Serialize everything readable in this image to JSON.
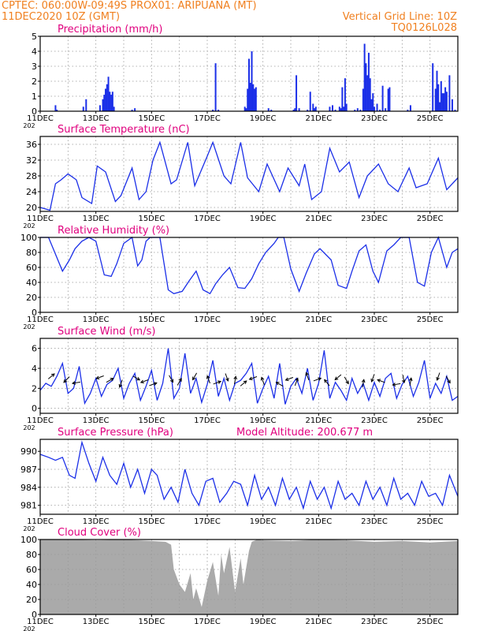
{
  "header": {
    "line1_left": "CPTEC:   060:00W-09:49S   PROX01: ARIPUANA (MT)",
    "line2_left": "11DEC2020  10Z (GMT)",
    "line2_right": "Vertical Grid Line: 10Z",
    "line3_right": "TQ0126L028"
  },
  "colors": {
    "header": "#f08020",
    "title": "#e0007e",
    "series": "#1b2fe8",
    "cloud": "#aaaaaa",
    "grid": "#999999"
  },
  "x_ticks": [
    "11DEC",
    "13DEC",
    "15DEC",
    "17DEC",
    "19DEC",
    "21DEC",
    "23DEC",
    "25DEC"
  ],
  "year_fragment": "202",
  "panel_titles": {
    "precip": "Precipitation (mm/h)",
    "temp": "Surface Temperature (nC)",
    "rh": "Relative Humidity (%)",
    "wind": "Surface Wind (m/s)",
    "pres": "Surface Pressure (hPa)",
    "alt": "Model Altitude: 200.677 m",
    "cloud": "Cloud Cover (%)"
  },
  "chart_data": [
    {
      "id": "precip",
      "type": "bar",
      "title": "Precipitation (mm/h)",
      "x_unit": "days since 11DEC 10Z",
      "xlim": [
        0,
        15
      ],
      "ylim": [
        0,
        5
      ],
      "yticks": [
        0,
        1,
        2,
        3,
        4,
        5
      ],
      "x": [
        0.55,
        0.6,
        1.55,
        1.65,
        2.15,
        2.25,
        2.3,
        2.35,
        2.4,
        2.45,
        2.5,
        2.55,
        2.6,
        2.65,
        3.3,
        3.4,
        6.2,
        6.3,
        6.4,
        7.35,
        7.4,
        7.45,
        7.5,
        7.55,
        7.6,
        7.65,
        7.7,
        7.75,
        8.2,
        8.3,
        9.1,
        9.15,
        9.2,
        9.3,
        9.6,
        9.7,
        9.8,
        9.85,
        9.9,
        10.4,
        10.5,
        10.6,
        10.75,
        10.8,
        10.85,
        10.9,
        10.95,
        11.0,
        11.3,
        11.4,
        11.5,
        11.6,
        11.65,
        11.7,
        11.75,
        11.8,
        11.85,
        11.9,
        11.95,
        12.0,
        12.1,
        12.2,
        12.3,
        12.4,
        12.5,
        12.55,
        13.2,
        13.3,
        14.1,
        14.2,
        14.25,
        14.3,
        14.35,
        14.4,
        14.45,
        14.5,
        14.55,
        14.6,
        14.7,
        14.8,
        14.9
      ],
      "values": [
        0.4,
        0.1,
        0.3,
        0.8,
        0.4,
        0.8,
        1.1,
        1.5,
        1.8,
        2.3,
        1.3,
        1.1,
        1.3,
        0.3,
        0.1,
        0.2,
        0.1,
        3.2,
        0.1,
        0.3,
        0.2,
        1.5,
        3.5,
        1.9,
        4.0,
        1.8,
        1.5,
        1.6,
        0.2,
        0.1,
        0.1,
        0.2,
        2.4,
        0.2,
        0.1,
        1.3,
        0.5,
        0.2,
        0.3,
        0.3,
        0.4,
        0.1,
        0.3,
        0.2,
        1.6,
        0.3,
        2.2,
        0.5,
        0.1,
        0.2,
        0.1,
        1.5,
        4.5,
        3.2,
        2.4,
        3.9,
        2.2,
        0.8,
        1.2,
        0.3,
        0.5,
        0.1,
        1.7,
        0.2,
        1.5,
        1.6,
        0.1,
        0.4,
        3.2,
        1.5,
        2.7,
        1.8,
        0.6,
        2.0,
        1.2,
        1.2,
        1.6,
        1.3,
        2.4,
        0.8,
        0.1
      ]
    },
    {
      "id": "temp",
      "type": "line",
      "title": "Surface Temperature (nC)",
      "x_unit": "days since 11DEC 10Z",
      "xlim": [
        0,
        15
      ],
      "ylim": [
        19,
        38
      ],
      "yticks": [
        20,
        24,
        28,
        32,
        36
      ],
      "x": [
        0,
        0.35,
        0.55,
        0.75,
        1.0,
        1.3,
        1.5,
        1.85,
        2.05,
        2.35,
        2.7,
        2.9,
        3.3,
        3.55,
        3.8,
        4.05,
        4.3,
        4.7,
        4.9,
        5.3,
        5.55,
        6.0,
        6.2,
        6.6,
        6.85,
        7.2,
        7.45,
        7.85,
        8.15,
        8.6,
        8.9,
        9.3,
        9.5,
        9.75,
        10.1,
        10.4,
        10.75,
        11.1,
        11.45,
        11.75,
        12.15,
        12.5,
        12.85,
        13.25,
        13.5,
        13.9,
        14.3,
        14.6,
        15
      ],
      "values": [
        20,
        19.3,
        26,
        27,
        28.5,
        27,
        22.5,
        21,
        30.5,
        29,
        21.5,
        23,
        30,
        22,
        24,
        32,
        36.5,
        26,
        27,
        36.5,
        25.5,
        33,
        36.5,
        28,
        26,
        36.5,
        27.5,
        24,
        31,
        24,
        30,
        25.5,
        31,
        22,
        24,
        35,
        29,
        31.5,
        22.5,
        28,
        31,
        26,
        24,
        30,
        25,
        26,
        32.5,
        24.5,
        27.5
      ]
    },
    {
      "id": "rh",
      "type": "line",
      "title": "Relative Humidity (%)",
      "x_unit": "days since 11DEC 10Z",
      "xlim": [
        0,
        15
      ],
      "ylim": [
        0,
        100
      ],
      "yticks": [
        0,
        20,
        40,
        60,
        80,
        100
      ],
      "x": [
        0,
        0.3,
        0.5,
        0.8,
        1.05,
        1.25,
        1.5,
        1.75,
        2.0,
        2.3,
        2.55,
        2.75,
        3.0,
        3.3,
        3.5,
        3.65,
        3.8,
        3.95,
        4.3,
        4.6,
        4.8,
        5.1,
        5.35,
        5.6,
        5.85,
        6.1,
        6.3,
        6.55,
        6.8,
        7.1,
        7.35,
        7.6,
        7.85,
        8.1,
        8.4,
        8.55,
        8.75,
        9.0,
        9.3,
        9.55,
        9.85,
        10.05,
        10.45,
        10.7,
        11.0,
        11.2,
        11.45,
        11.7,
        11.95,
        12.15,
        12.45,
        12.7,
        12.95,
        13.25,
        13.55,
        13.8,
        14.05,
        14.3,
        14.6,
        14.8,
        15
      ],
      "values": [
        100,
        100,
        82,
        55,
        70,
        85,
        95,
        100,
        95,
        50,
        48,
        65,
        92,
        100,
        62,
        70,
        95,
        100,
        100,
        30,
        25,
        28,
        42,
        55,
        30,
        25,
        38,
        50,
        60,
        33,
        32,
        45,
        65,
        80,
        92,
        100,
        100,
        58,
        28,
        52,
        78,
        85,
        70,
        36,
        32,
        55,
        82,
        90,
        55,
        40,
        82,
        90,
        100,
        100,
        40,
        35,
        80,
        100,
        60,
        80,
        85
      ]
    },
    {
      "id": "wind",
      "type": "line",
      "title": "Surface Wind (m/s)",
      "x_unit": "days since 11DEC 10Z",
      "xlim": [
        0,
        15
      ],
      "ylim": [
        -0.5,
        7
      ],
      "yticks": [
        0,
        2,
        4,
        6
      ],
      "x": [
        0,
        0.2,
        0.4,
        0.6,
        0.8,
        1.0,
        1.2,
        1.4,
        1.6,
        1.8,
        2.0,
        2.2,
        2.4,
        2.6,
        2.8,
        3.0,
        3.2,
        3.4,
        3.6,
        3.8,
        4.0,
        4.2,
        4.4,
        4.6,
        4.8,
        5.0,
        5.2,
        5.4,
        5.6,
        5.8,
        6.0,
        6.2,
        6.4,
        6.6,
        6.8,
        7.0,
        7.2,
        7.4,
        7.6,
        7.8,
        8.0,
        8.2,
        8.4,
        8.6,
        8.8,
        9.0,
        9.2,
        9.4,
        9.6,
        9.8,
        10.0,
        10.2,
        10.4,
        10.6,
        10.8,
        11.0,
        11.2,
        11.4,
        11.6,
        11.8,
        12.0,
        12.2,
        12.4,
        12.6,
        12.8,
        13.0,
        13.2,
        13.4,
        13.6,
        13.8,
        14.0,
        14.2,
        14.4,
        14.6,
        14.8,
        15.0
      ],
      "values": [
        1.8,
        2.5,
        2.2,
        3.2,
        4.5,
        1.5,
        2.0,
        4.2,
        0.5,
        1.5,
        3.0,
        1.2,
        2.4,
        2.8,
        4.0,
        1.0,
        2.5,
        3.5,
        0.8,
        2.2,
        3.8,
        0.8,
        2.5,
        6.0,
        1.0,
        2.0,
        5.5,
        1.5,
        3.0,
        0.6,
        2.4,
        4.8,
        1.2,
        3.0,
        0.8,
        2.5,
        2.8,
        3.5,
        4.5,
        0.5,
        2.0,
        3.2,
        1.0,
        4.5,
        0.4,
        2.2,
        3.0,
        1.5,
        4.0,
        0.8,
        2.5,
        5.8,
        1.0,
        2.6,
        1.8,
        0.8,
        3.0,
        1.5,
        2.5,
        0.8,
        2.6,
        1.2,
        3.0,
        3.5,
        1.0,
        2.4,
        3.2,
        1.2,
        2.6,
        4.8,
        1.0,
        2.5,
        1.5,
        3.2,
        0.8,
        1.2
      ]
    },
    {
      "id": "pres",
      "type": "line",
      "title": "Surface Pressure (hPa)",
      "x_unit": "days since 11DEC 10Z",
      "xlim": [
        0,
        15
      ],
      "ylim": [
        979.5,
        992
      ],
      "yticks": [
        981,
        984,
        987,
        990
      ],
      "x": [
        0,
        0.3,
        0.55,
        0.8,
        1.05,
        1.25,
        1.5,
        1.75,
        2.0,
        2.25,
        2.5,
        2.75,
        3.0,
        3.25,
        3.5,
        3.75,
        4.0,
        4.2,
        4.45,
        4.7,
        4.95,
        5.2,
        5.45,
        5.7,
        5.95,
        6.2,
        6.45,
        6.7,
        6.95,
        7.2,
        7.45,
        7.7,
        7.95,
        8.2,
        8.45,
        8.7,
        8.95,
        9.2,
        9.45,
        9.7,
        9.95,
        10.2,
        10.45,
        10.7,
        10.95,
        11.2,
        11.45,
        11.7,
        11.95,
        12.2,
        12.45,
        12.7,
        12.95,
        13.2,
        13.45,
        13.7,
        13.95,
        14.2,
        14.45,
        14.7,
        15
      ],
      "values": [
        989.5,
        989,
        988.5,
        989,
        986,
        985.5,
        991.5,
        988,
        985,
        989,
        986,
        984.5,
        988,
        984,
        987,
        983,
        987,
        986,
        982,
        984,
        981.5,
        987,
        983,
        981,
        985,
        985.5,
        981.5,
        983,
        985,
        984.5,
        981,
        986,
        982,
        984,
        981,
        985.5,
        982,
        984,
        980.5,
        985,
        982,
        984,
        980.5,
        985,
        982,
        983,
        981,
        985,
        982,
        984,
        981,
        985.5,
        982,
        983,
        981,
        985,
        982.5,
        983,
        981,
        986,
        982.5
      ]
    },
    {
      "id": "cloud",
      "type": "area",
      "title": "Cloud Cover (%)",
      "x_unit": "days since 11DEC 10Z",
      "xlim": [
        0,
        15
      ],
      "ylim": [
        0,
        100
      ],
      "yticks": [
        0,
        20,
        40,
        60,
        80,
        100
      ],
      "x": [
        0,
        1.0,
        2.0,
        3.0,
        4.0,
        4.5,
        4.7,
        4.8,
        5.0,
        5.2,
        5.4,
        5.5,
        5.6,
        5.8,
        6.0,
        6.2,
        6.4,
        6.5,
        6.6,
        6.8,
        7.0,
        7.2,
        7.3,
        7.5,
        7.6,
        7.8,
        8.0,
        9.0,
        10.0,
        11.0,
        12.0,
        13.0,
        14.0,
        15
      ],
      "values": [
        100,
        100,
        99,
        100,
        98,
        97,
        93,
        60,
        40,
        30,
        55,
        20,
        35,
        10,
        45,
        70,
        25,
        80,
        55,
        90,
        30,
        75,
        40,
        85,
        97,
        100,
        99,
        98,
        100,
        99,
        97,
        98,
        96,
        98
      ]
    }
  ]
}
